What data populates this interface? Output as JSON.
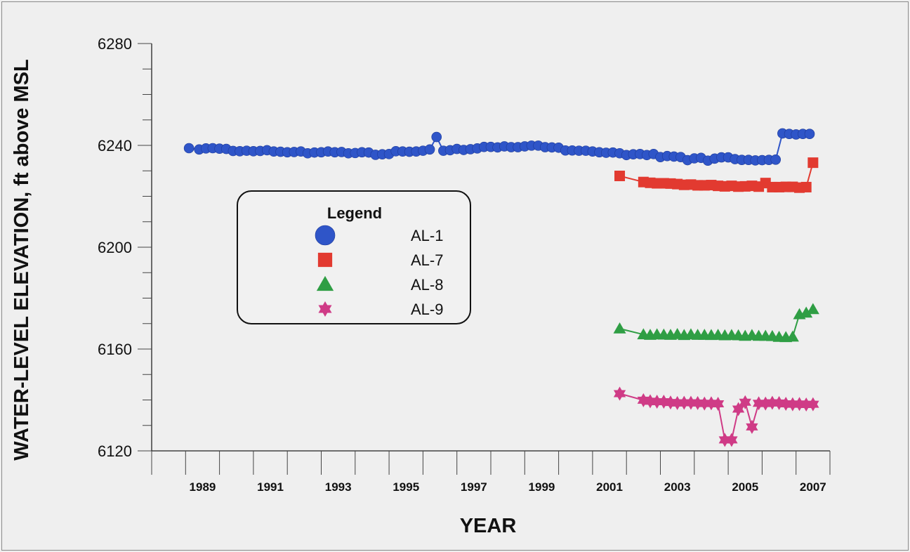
{
  "chart_data": {
    "type": "line",
    "xlabel": "YEAR",
    "ylabel": "WATER-LEVEL ELEVATION, ft above MSL",
    "xlim": [
      1988,
      2008
    ],
    "ylim": [
      6120,
      6280
    ],
    "x_ticks": [
      1989,
      1991,
      1993,
      1995,
      1997,
      1999,
      2001,
      2003,
      2005,
      2007
    ],
    "x_tick_labels": [
      "1989",
      "1991",
      "1993",
      "1995",
      "1997",
      "1999",
      "2001",
      "2003",
      "2005",
      "2007"
    ],
    "y_ticks": [
      6120,
      6160,
      6200,
      6240,
      6280
    ],
    "y_tick_labels": [
      "6120",
      "6160",
      "6200",
      "6240",
      "6280"
    ],
    "grid": false,
    "legend": {
      "title": "Legend",
      "position": "center-left",
      "entries": [
        "AL-1",
        "AL-7",
        "AL-8",
        "AL-9"
      ]
    },
    "series": [
      {
        "name": "AL-1",
        "marker": "circle",
        "color": "#2f55c8",
        "x": [
          1989.1,
          1989.4,
          1989.6,
          1989.8,
          1990.0,
          1990.2,
          1990.4,
          1990.6,
          1990.8,
          1991.0,
          1991.2,
          1991.4,
          1991.6,
          1991.8,
          1992.0,
          1992.2,
          1992.4,
          1992.6,
          1992.8,
          1993.0,
          1993.2,
          1993.4,
          1993.6,
          1993.8,
          1994.0,
          1994.2,
          1994.4,
          1994.6,
          1994.8,
          1995.0,
          1995.2,
          1995.4,
          1995.6,
          1995.8,
          1996.0,
          1996.2,
          1996.4,
          1996.6,
          1996.8,
          1997.0,
          1997.2,
          1997.4,
          1997.6,
          1997.8,
          1998.0,
          1998.2,
          1998.4,
          1998.6,
          1998.8,
          1999.0,
          1999.2,
          1999.4,
          1999.6,
          1999.8,
          2000.0,
          2000.2,
          2000.4,
          2000.6,
          2000.8,
          2001.0,
          2001.2,
          2001.4,
          2001.6,
          2001.8,
          2002.0,
          2002.2,
          2002.4,
          2002.6,
          2002.8,
          2003.0,
          2003.2,
          2003.4,
          2003.6,
          2003.8,
          2004.0,
          2004.2,
          2004.4,
          2004.6,
          2004.8,
          2005.0,
          2005.2,
          2005.4,
          2005.6,
          2005.8,
          2006.0,
          2006.2,
          2006.4,
          2006.6,
          2006.8,
          2007.0,
          2007.2,
          2007.4
        ],
        "y": [
          6238.9,
          6238.4,
          6238.8,
          6238.9,
          6238.7,
          6238.6,
          6237.8,
          6237.7,
          6237.9,
          6237.7,
          6237.8,
          6238.1,
          6237.6,
          6237.5,
          6237.3,
          6237.4,
          6237.6,
          6236.9,
          6237.2,
          6237.3,
          6237.6,
          6237.3,
          6237.4,
          6236.9,
          6237.0,
          6237.3,
          6237.2,
          6236.3,
          6236.5,
          6236.6,
          6237.7,
          6237.6,
          6237.5,
          6237.6,
          6237.9,
          6238.4,
          6243.3,
          6237.9,
          6238.1,
          6238.6,
          6238.2,
          6238.5,
          6238.8,
          6239.4,
          6239.4,
          6239.2,
          6239.6,
          6239.3,
          6239.3,
          6239.6,
          6239.9,
          6239.9,
          6239.3,
          6239.2,
          6239.1,
          6238.0,
          6238.0,
          6237.9,
          6237.9,
          6237.6,
          6237.3,
          6237.1,
          6237.2,
          6236.9,
          6236.2,
          6236.5,
          6236.6,
          6236.2,
          6236.6,
          6235.4,
          6235.8,
          6235.6,
          6235.4,
          6234.2,
          6234.9,
          6235.1,
          6234.0,
          6234.8,
          6235.3,
          6235.3,
          6234.6,
          6234.3,
          6234.3,
          6234.1,
          6234.2,
          6234.3,
          6234.4,
          6244.7,
          6244.5,
          6244.3,
          6244.5,
          6244.5
        ]
      },
      {
        "name": "AL-7",
        "marker": "square",
        "color": "#e23a30",
        "x": [
          2001.8,
          2002.5,
          2002.7,
          2002.9,
          2003.1,
          2003.3,
          2003.5,
          2003.7,
          2003.9,
          2004.1,
          2004.3,
          2004.5,
          2004.7,
          2004.9,
          2005.1,
          2005.3,
          2005.5,
          2005.7,
          2005.9,
          2006.1,
          2006.3,
          2006.5,
          2006.7,
          2006.9,
          2007.1,
          2007.3,
          2007.5
        ],
        "y": [
          6228.0,
          6225.6,
          6225.3,
          6225.1,
          6225.1,
          6225.0,
          6224.8,
          6224.5,
          6224.6,
          6224.3,
          6224.3,
          6224.4,
          6224.1,
          6223.9,
          6224.1,
          6223.8,
          6223.9,
          6224.1,
          6223.8,
          6225.2,
          6223.6,
          6223.6,
          6223.7,
          6223.7,
          6223.4,
          6223.6,
          6233.2
        ]
      },
      {
        "name": "AL-8",
        "marker": "triangle",
        "color": "#2f9e44",
        "x": [
          2001.8,
          2002.5,
          2002.7,
          2002.9,
          2003.1,
          2003.3,
          2003.5,
          2003.7,
          2003.9,
          2004.1,
          2004.3,
          2004.5,
          2004.7,
          2004.9,
          2005.1,
          2005.3,
          2005.5,
          2005.7,
          2005.9,
          2006.1,
          2006.3,
          2006.5,
          2006.7,
          2006.9,
          2007.1,
          2007.3,
          2007.5
        ],
        "y": [
          6168.0,
          6165.7,
          6165.5,
          6165.7,
          6165.6,
          6165.5,
          6165.8,
          6165.4,
          6165.7,
          6165.5,
          6165.5,
          6165.4,
          6165.5,
          6165.3,
          6165.4,
          6165.3,
          6165.1,
          6165.4,
          6165.1,
          6165.1,
          6165.0,
          6164.7,
          6164.6,
          6164.8,
          6173.6,
          6174.2,
          6175.6
        ]
      },
      {
        "name": "AL-9",
        "marker": "star",
        "color": "#cf3b86",
        "x": [
          2001.8,
          2002.5,
          2002.7,
          2002.9,
          2003.1,
          2003.3,
          2003.5,
          2003.7,
          2003.9,
          2004.1,
          2004.3,
          2004.5,
          2004.7,
          2004.9,
          2005.1,
          2005.3,
          2005.5,
          2005.7,
          2005.9,
          2006.1,
          2006.3,
          2006.5,
          2006.7,
          2006.9,
          2007.1,
          2007.3,
          2007.5
        ],
        "y": [
          6142.5,
          6139.9,
          6139.5,
          6139.3,
          6139.3,
          6139.0,
          6138.8,
          6138.9,
          6138.9,
          6138.8,
          6138.6,
          6138.7,
          6138.5,
          6124.3,
          6124.3,
          6136.4,
          6139.1,
          6129.4,
          6138.7,
          6138.6,
          6138.9,
          6138.8,
          6138.5,
          6138.3,
          6138.4,
          6138.2,
          6138.3
        ]
      }
    ]
  }
}
